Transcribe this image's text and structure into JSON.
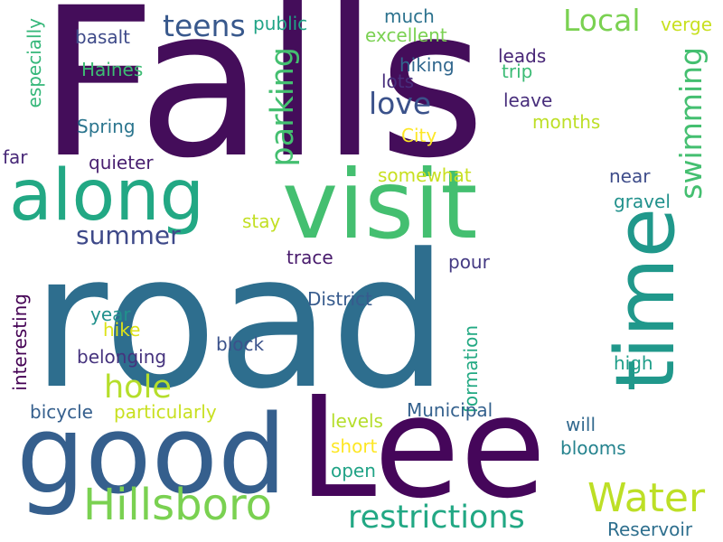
{
  "words": [
    {
      "text": "Falls",
      "color": "#440d5a"
    },
    {
      "text": "road",
      "color": "#2e6e8e"
    },
    {
      "text": "Lee",
      "color": "#45065a"
    },
    {
      "text": "visit",
      "color": "#44bf70"
    },
    {
      "text": "time",
      "color": "#20988b"
    },
    {
      "text": "good",
      "color": "#355f8d"
    },
    {
      "text": "along",
      "color": "#22a884"
    },
    {
      "text": "Hillsboro",
      "color": "#7ad151"
    },
    {
      "text": "Water",
      "color": "#bddf26"
    },
    {
      "text": "restrictions",
      "color": "#22a884"
    },
    {
      "text": "parking",
      "color": "#44bf70"
    },
    {
      "text": "swimming",
      "color": "#44bf70"
    },
    {
      "text": "teens",
      "color": "#38588c"
    },
    {
      "text": "Local",
      "color": "#7ad151"
    },
    {
      "text": "love",
      "color": "#3b528b"
    },
    {
      "text": "summer",
      "color": "#3e4989"
    },
    {
      "text": "hole",
      "color": "#b5de2b"
    },
    {
      "text": "especially",
      "color": "#35b779"
    },
    {
      "text": "interesting",
      "color": "#440154"
    },
    {
      "text": "formation",
      "color": "#23a983"
    },
    {
      "text": "basalt",
      "color": "#3e4a89"
    },
    {
      "text": "Haines",
      "color": "#3dbc74"
    },
    {
      "text": "Spring",
      "color": "#2b758e"
    },
    {
      "text": "far",
      "color": "#482878"
    },
    {
      "text": "quieter",
      "color": "#481f70"
    },
    {
      "text": "public",
      "color": "#20a486"
    },
    {
      "text": "much",
      "color": "#2c728e"
    },
    {
      "text": "excellent",
      "color": "#7ad151"
    },
    {
      "text": "verge",
      "color": "#c8e020"
    },
    {
      "text": "hiking",
      "color": "#31678e"
    },
    {
      "text": "leads",
      "color": "#482677"
    },
    {
      "text": "trip",
      "color": "#3bbb75"
    },
    {
      "text": "lots",
      "color": "#472e7c"
    },
    {
      "text": "leave",
      "color": "#472d7b"
    },
    {
      "text": "months",
      "color": "#bddf26"
    },
    {
      "text": "City",
      "color": "#fde725"
    },
    {
      "text": "somewhat",
      "color": "#c8e020"
    },
    {
      "text": "near",
      "color": "#3e4c8a"
    },
    {
      "text": "gravel",
      "color": "#21918c"
    },
    {
      "text": "stay",
      "color": "#c2df23"
    },
    {
      "text": "trace",
      "color": "#481a6c"
    },
    {
      "text": "pour",
      "color": "#443a83"
    },
    {
      "text": "District",
      "color": "#375b8d"
    },
    {
      "text": "year",
      "color": "#21918c"
    },
    {
      "text": "hike",
      "color": "#dde318"
    },
    {
      "text": "belonging",
      "color": "#46337e"
    },
    {
      "text": "block",
      "color": "#3b528b"
    },
    {
      "text": "high",
      "color": "#1f9e89"
    },
    {
      "text": "bicycle",
      "color": "#355f8d"
    },
    {
      "text": "particularly",
      "color": "#c8e020"
    },
    {
      "text": "Municipal",
      "color": "#34618d"
    },
    {
      "text": "levels",
      "color": "#b5de2b"
    },
    {
      "text": "will",
      "color": "#31688e"
    },
    {
      "text": "short",
      "color": "#fde725"
    },
    {
      "text": "blooms",
      "color": "#25838e"
    },
    {
      "text": "open",
      "color": "#20a386"
    },
    {
      "text": "Reservoir",
      "color": "#2e6f8e"
    }
  ]
}
